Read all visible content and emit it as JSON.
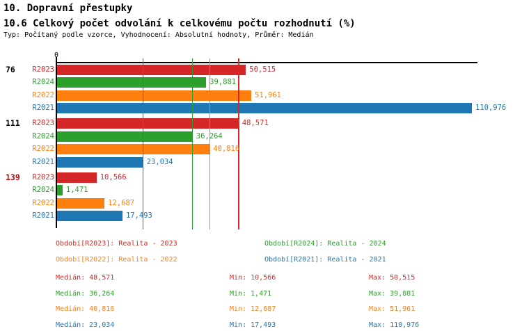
{
  "header": {
    "title": "10. Dopravní přestupky",
    "subtitle": "10.6 Celkový počet odvolání k celkovému počtu rozhodnutí (%)",
    "meta": "Typ: Počítaný podle vzorce, Vyhodnocení: Absolutní hodnoty, Průměr: Medián"
  },
  "colors": {
    "R2023": "#d62728",
    "R2024": "#2ca02c",
    "R2022": "#ff7f0e",
    "R2021": "#1f77b4",
    "axis": "#000000",
    "group_label_default": "#000000",
    "group_label_alert": "#cc0000"
  },
  "chart_data": {
    "type": "bar",
    "orientation": "horizontal",
    "x_axis": {
      "zero_label": "0",
      "xlim": [
        0,
        112600
      ],
      "ticks_shown": [
        "0"
      ]
    },
    "series_order": [
      "R2023",
      "R2024",
      "R2022",
      "R2021"
    ],
    "groups": [
      {
        "label": "76",
        "label_color": "#000000",
        "bars": [
          {
            "series": "R2023",
            "value": 50515,
            "display": "50,515"
          },
          {
            "series": "R2024",
            "value": 39881,
            "display": "39,881"
          },
          {
            "series": "R2022",
            "value": 51961,
            "display": "51,961"
          },
          {
            "series": "R2021",
            "value": 110976,
            "display": "110,976"
          }
        ]
      },
      {
        "label": "111",
        "label_color": "#000000",
        "bars": [
          {
            "series": "R2023",
            "value": 48571,
            "display": "48,571"
          },
          {
            "series": "R2024",
            "value": 36264,
            "display": "36,264"
          },
          {
            "series": "R2022",
            "value": 40816,
            "display": "40,816"
          },
          {
            "series": "R2021",
            "value": 23034,
            "display": "23,034"
          }
        ]
      },
      {
        "label": "139",
        "label_color": "#cc0000",
        "bars": [
          {
            "series": "R2023",
            "value": 10566,
            "display": "10,566"
          },
          {
            "series": "R2024",
            "value": 1471,
            "display": "1,471"
          },
          {
            "series": "R2022",
            "value": 12687,
            "display": "12,687"
          },
          {
            "series": "R2021",
            "value": 17493,
            "display": "17,493"
          }
        ]
      }
    ],
    "median_lines": [
      {
        "series": "R2023",
        "value": 48571
      },
      {
        "series": "R2024",
        "value": 36264
      },
      {
        "series": "R2022",
        "value": 40816
      },
      {
        "series": "R2021",
        "value": 23034
      }
    ]
  },
  "legend": {
    "items": [
      {
        "series": "R2023",
        "label": "Období[R2023]: Realita - 2023",
        "row": 0,
        "col": 0
      },
      {
        "series": "R2024",
        "label": "Období[R2024]: Realita - 2024",
        "row": 0,
        "col": 1
      },
      {
        "series": "R2022",
        "label": "Období[R2022]: Realita - 2022",
        "row": 1,
        "col": 0
      },
      {
        "series": "R2021",
        "label": "Období[R2021]: Realita - 2021",
        "row": 1,
        "col": 1
      }
    ]
  },
  "stats": {
    "labels": {
      "median": "Medián",
      "min": "Min",
      "max": "Max"
    },
    "rows": [
      {
        "series": "R2023",
        "median": "48,571",
        "min": "10,566",
        "max": "50,515"
      },
      {
        "series": "R2024",
        "median": "36,264",
        "min": "1,471",
        "max": "39,881"
      },
      {
        "series": "R2022",
        "median": "40,816",
        "min": "12,687",
        "max": "51,961"
      },
      {
        "series": "R2021",
        "median": "23,034",
        "min": "17,493",
        "max": "110,976"
      }
    ]
  }
}
